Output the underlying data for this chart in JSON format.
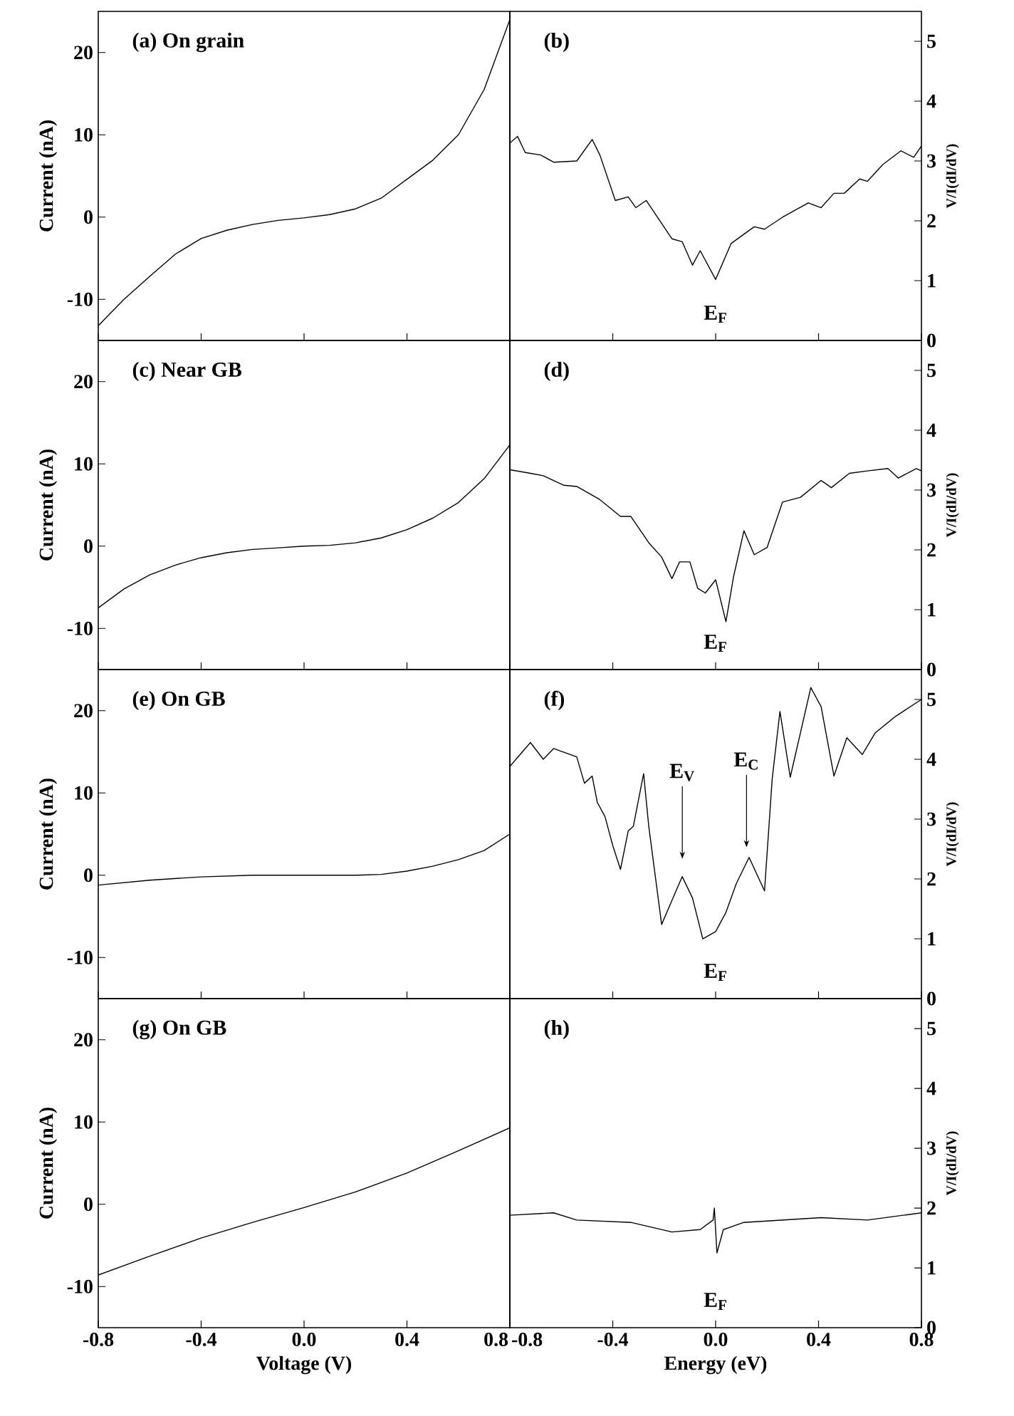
{
  "chart_data": [
    {
      "type": "line",
      "title": "(a) On grain",
      "ylabel": "Current (nA)",
      "xlim": [
        -0.8,
        0.8
      ],
      "ylim": [
        -15,
        25
      ],
      "xticks": [
        -0.8,
        -0.4,
        0.0,
        0.4,
        0.8
      ],
      "yticks": [
        -10,
        0,
        10,
        20
      ],
      "tick_labels": "y",
      "x": [
        -0.8,
        -0.7,
        -0.6,
        -0.5,
        -0.4,
        -0.3,
        -0.2,
        -0.1,
        0,
        0.1,
        0.2,
        0.3,
        0.4,
        0.5,
        0.6,
        0.7,
        0.8
      ],
      "values": [
        -13.2,
        -10,
        -7.2,
        -4.5,
        -2.6,
        -1.6,
        -0.9,
        -0.4,
        -0.1,
        0.3,
        1.0,
        2.3,
        4.6,
        6.9,
        10.0,
        15.5,
        24
      ]
    },
    {
      "type": "line",
      "title": "(b)",
      "ylabel": "V/I(dI/dV)",
      "xlim": [
        -0.8,
        0.8
      ],
      "ylim": [
        0,
        5.5
      ],
      "xticks": [
        -0.8,
        -0.4,
        0.0,
        0.4,
        0.8
      ],
      "yticks": [
        0,
        1,
        2,
        3,
        4,
        5
      ],
      "tick_labels": "y",
      "annotations": [
        "E$_{F}$"
      ],
      "x": [
        -0.8,
        -0.77,
        -0.74,
        -0.68,
        -0.63,
        -0.54,
        -0.48,
        -0.45,
        -0.39,
        -0.34,
        -0.31,
        -0.27,
        -0.17,
        -0.13,
        -0.09,
        -0.06,
        0,
        0.06,
        0.15,
        0.19,
        0.26,
        0.36,
        0.41,
        0.46,
        0.5,
        0.56,
        0.59,
        0.65,
        0.72,
        0.77,
        0.8
      ],
      "values": [
        3.3,
        3.41,
        3.14,
        3.1,
        2.98,
        3.0,
        3.36,
        3.1,
        2.34,
        2.4,
        2.22,
        2.34,
        1.7,
        1.65,
        1.26,
        1.5,
        1.02,
        1.62,
        1.9,
        1.86,
        2.06,
        2.3,
        2.22,
        2.46,
        2.46,
        2.7,
        2.66,
        2.94,
        3.17,
        3.06,
        3.25
      ]
    },
    {
      "type": "line",
      "title": "(c) Near GB",
      "ylabel": "Current (nA)",
      "xlim": [
        -0.8,
        0.8
      ],
      "ylim": [
        -15,
        25
      ],
      "xticks": [
        -0.8,
        -0.4,
        0.0,
        0.4,
        0.8
      ],
      "yticks": [
        -10,
        0,
        10,
        20
      ],
      "tick_labels": "y",
      "x": [
        -0.8,
        -0.7,
        -0.6,
        -0.5,
        -0.4,
        -0.3,
        -0.2,
        -0.1,
        0,
        0.1,
        0.2,
        0.3,
        0.4,
        0.5,
        0.6,
        0.7,
        0.8
      ],
      "values": [
        -7.5,
        -5.2,
        -3.5,
        -2.3,
        -1.4,
        -0.8,
        -0.4,
        -0.2,
        0,
        0.1,
        0.4,
        1.0,
        2.0,
        3.4,
        5.3,
        8.2,
        12.3
      ]
    },
    {
      "type": "line",
      "title": "(d)",
      "ylabel": "V/I(dI/dV)",
      "xlim": [
        -0.8,
        0.8
      ],
      "ylim": [
        0,
        5.5
      ],
      "xticks": [
        -0.8,
        -0.4,
        0.0,
        0.4,
        0.8
      ],
      "yticks": [
        0,
        1,
        2,
        3,
        4,
        5
      ],
      "tick_labels": "y",
      "annotations": [
        "E$_{F}$"
      ],
      "x": [
        -0.8,
        -0.72,
        -0.67,
        -0.59,
        -0.54,
        -0.45,
        -0.37,
        -0.33,
        -0.26,
        -0.21,
        -0.17,
        -0.14,
        -0.1,
        -0.07,
        -0.04,
        0,
        0.04,
        0.07,
        0.11,
        0.15,
        0.2,
        0.26,
        0.33,
        0.41,
        0.45,
        0.52,
        0.59,
        0.67,
        0.71,
        0.78,
        0.8
      ],
      "values": [
        3.34,
        3.28,
        3.24,
        3.08,
        3.06,
        2.84,
        2.56,
        2.56,
        2.12,
        1.88,
        1.52,
        1.8,
        1.8,
        1.36,
        1.28,
        1.5,
        0.8,
        1.56,
        2.32,
        1.92,
        2.04,
        2.8,
        2.88,
        3.16,
        3.04,
        3.28,
        3.32,
        3.36,
        3.2,
        3.36,
        3.32
      ]
    },
    {
      "type": "line",
      "title": "(e) On GB",
      "ylabel": "Current (nA)",
      "xlim": [
        -0.8,
        0.8
      ],
      "ylim": [
        -15,
        25
      ],
      "xticks": [
        -0.8,
        -0.4,
        0.0,
        0.4,
        0.8
      ],
      "yticks": [
        -10,
        0,
        10,
        20
      ],
      "tick_labels": "y",
      "x": [
        -0.8,
        -0.6,
        -0.4,
        -0.2,
        0,
        0.2,
        0.3,
        0.4,
        0.5,
        0.6,
        0.7,
        0.8
      ],
      "values": [
        -1.2,
        -0.6,
        -0.2,
        0,
        0,
        0,
        0.1,
        0.5,
        1.1,
        1.9,
        3.0,
        5.0
      ]
    },
    {
      "type": "line",
      "title": "(f)",
      "ylabel": "V/I(dI/dV)",
      "xlim": [
        -0.8,
        0.8
      ],
      "ylim": [
        0,
        5.5
      ],
      "xticks": [
        -0.8,
        -0.4,
        0.0,
        0.4,
        0.8
      ],
      "yticks": [
        0,
        1,
        2,
        3,
        4,
        5
      ],
      "tick_labels": "y",
      "annotations": [
        "E$_{F}$",
        "E$_{V}$",
        "E$_{C}$"
      ],
      "x": [
        -0.8,
        -0.76,
        -0.72,
        -0.67,
        -0.63,
        -0.54,
        -0.51,
        -0.48,
        -0.46,
        -0.43,
        -0.4,
        -0.37,
        -0.34,
        -0.32,
        -0.28,
        -0.26,
        -0.21,
        -0.17,
        -0.13,
        -0.09,
        -0.05,
        0,
        0.04,
        0.08,
        0.13,
        0.19,
        0.22,
        0.25,
        0.29,
        0.37,
        0.41,
        0.46,
        0.51,
        0.57,
        0.62,
        0.7,
        0.8
      ],
      "values": [
        3.88,
        4.08,
        4.28,
        4.0,
        4.18,
        4.04,
        3.6,
        3.72,
        3.28,
        3.04,
        2.56,
        2.16,
        2.8,
        2.88,
        3.76,
        2.88,
        1.24,
        1.64,
        2.04,
        1.68,
        1.0,
        1.12,
        1.44,
        1.92,
        2.36,
        1.8,
        3.68,
        4.8,
        3.7,
        5.2,
        4.88,
        3.72,
        4.36,
        4.08,
        4.44,
        4.72,
        5.0
      ]
    },
    {
      "type": "line",
      "title": "(g) On GB",
      "ylabel": "Current (nA)",
      "xlabel": "Voltage (V)",
      "xlim": [
        -0.8,
        0.8
      ],
      "ylim": [
        -15,
        25
      ],
      "xticks": [
        -0.8,
        -0.4,
        {
          "value": 0,
          "label": "0.0"
        },
        0.4,
        0.8
      ],
      "yticks": [
        -10,
        0,
        10,
        20
      ],
      "x": [
        -0.8,
        -0.6,
        -0.4,
        -0.2,
        0,
        0.2,
        0.4,
        0.6,
        0.8
      ],
      "values": [
        -8.6,
        -6.3,
        -4.1,
        -2.2,
        -0.4,
        1.5,
        3.8,
        6.5,
        9.3
      ]
    },
    {
      "type": "line",
      "title": "(h)",
      "ylabel": "V/I(dI/dV)",
      "xlabel": "Energy (eV)",
      "xlim": [
        -0.8,
        0.8
      ],
      "ylim": [
        0,
        5.5
      ],
      "xticks": [
        -0.8,
        -0.4,
        {
          "value": 0,
          "label": "0.0"
        },
        0.4,
        0.8
      ],
      "yticks": [
        0,
        1,
        2,
        3,
        4,
        5
      ],
      "annotations": [
        "E$_{F}$"
      ],
      "x": [
        -0.8,
        -0.63,
        -0.54,
        -0.33,
        -0.17,
        -0.06,
        -0.01,
        -0.005,
        0.005,
        0.03,
        0.11,
        0.41,
        0.59,
        0.8
      ],
      "values": [
        1.88,
        1.92,
        1.8,
        1.76,
        1.6,
        1.64,
        1.8,
        2.0,
        1.25,
        1.64,
        1.76,
        1.84,
        1.8,
        1.92
      ]
    }
  ]
}
